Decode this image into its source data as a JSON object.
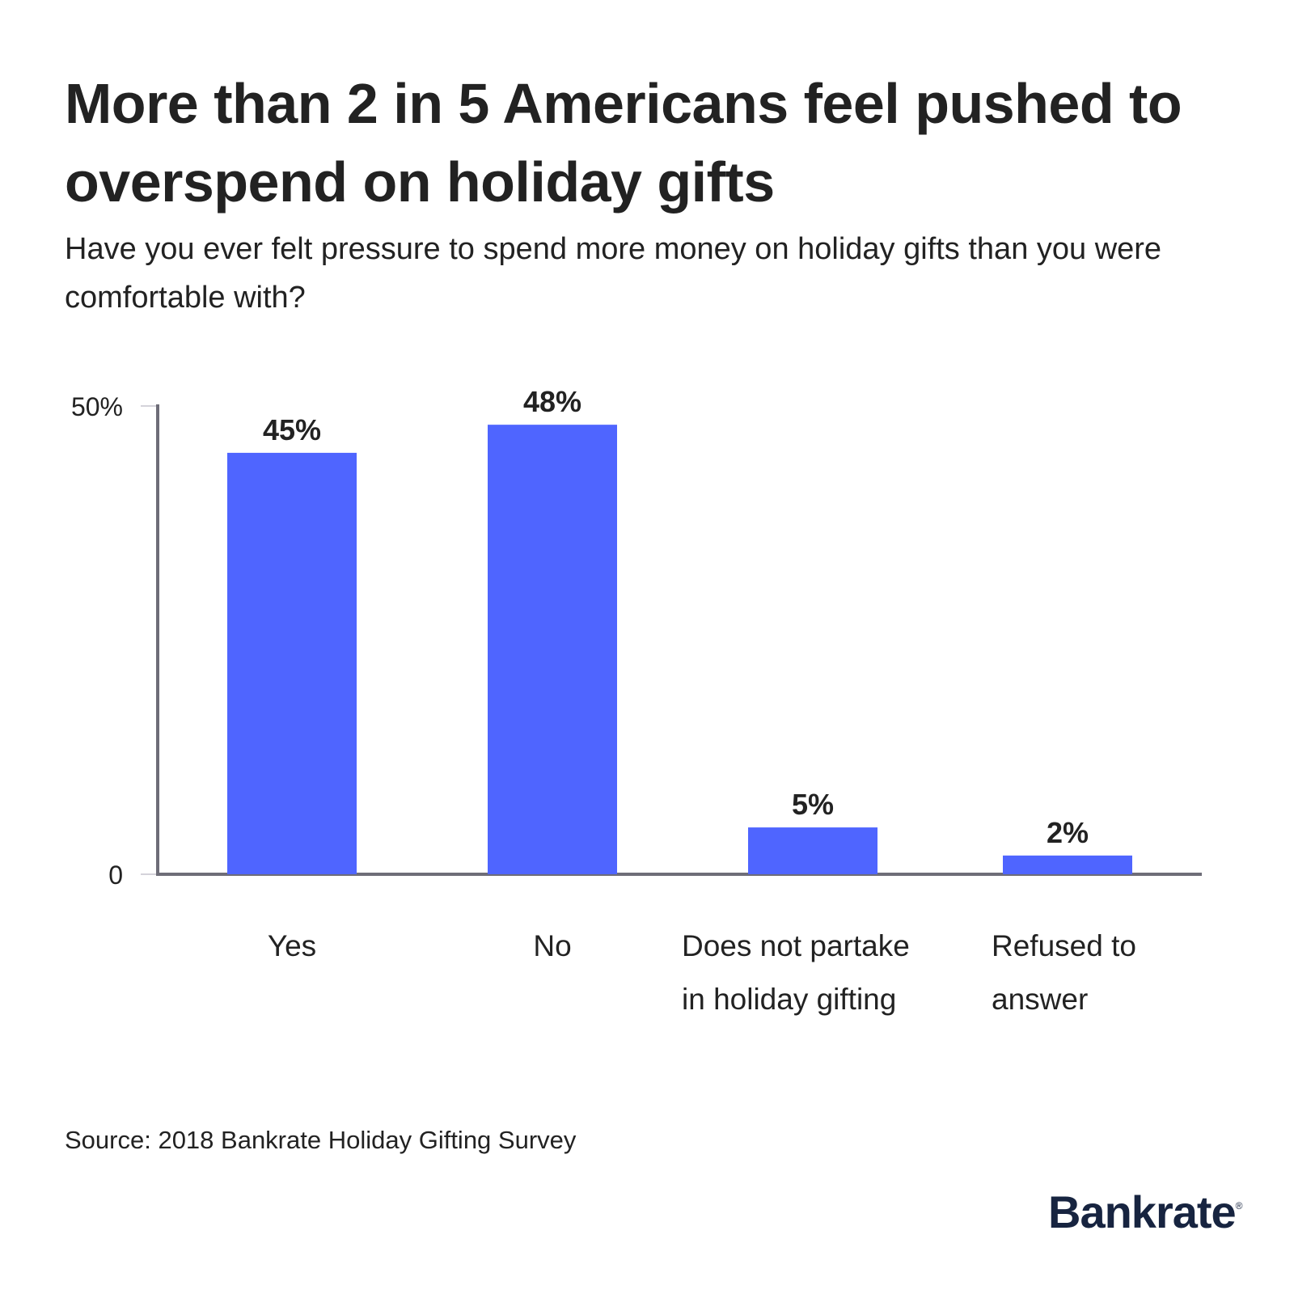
{
  "header": {
    "title": "More than 2 in 5 Americans feel pushed to overspend on holiday gifts",
    "subtitle": "Have you ever felt pressure to spend more money on holiday gifts than you were comfortable with?"
  },
  "footer": {
    "source": "Source: 2018 Bankrate Holiday Gifting Survey",
    "logo": "Bankrate",
    "logo_mark": "®"
  },
  "colors": {
    "bar": "#4f65ff",
    "axis": "#6e6d78",
    "text": "#222222",
    "logo": "#172440"
  },
  "chart_data": {
    "type": "bar",
    "title": "More than 2 in 5 Americans feel pushed to overspend on holiday gifts",
    "subtitle": "Have you ever felt pressure to spend more money on holiday gifts than you were comfortable with?",
    "categories": [
      [
        "Yes"
      ],
      [
        "No"
      ],
      [
        "Does not partake",
        "in holiday gifting"
      ],
      [
        "Refused to",
        "answer"
      ]
    ],
    "values": [
      45,
      48,
      5,
      2
    ],
    "value_labels": [
      "45%",
      "48%",
      "5%",
      "2%"
    ],
    "xlabel": "",
    "ylabel": "",
    "ylim": [
      0,
      50
    ],
    "yticks": [
      0,
      50
    ],
    "ytick_labels": [
      "0",
      "50%"
    ],
    "grid": false,
    "legend": "none",
    "source": "Source: 2018 Bankrate Holiday Gifting Survey"
  }
}
